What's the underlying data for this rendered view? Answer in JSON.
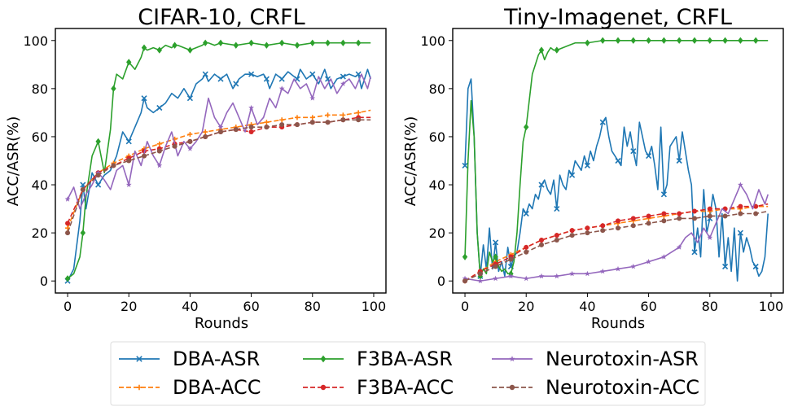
{
  "legend": {
    "placement": "bottom-center",
    "columns": 3,
    "entries": [
      "DBA-ASR",
      "DBA-ACC",
      "F3BA-ASR",
      "F3BA-ACC",
      "Neurotoxin-ASR",
      "Neurotoxin-ACC"
    ]
  },
  "series_style": {
    "DBA-ASR": {
      "color": "#1f77b4",
      "dash": "solid",
      "marker": "x"
    },
    "DBA-ACC": {
      "color": "#ff7f0e",
      "dash": "dashed",
      "marker": "plus"
    },
    "F3BA-ASR": {
      "color": "#2ca02c",
      "dash": "solid",
      "marker": "diamond"
    },
    "F3BA-ACC": {
      "color": "#d62728",
      "dash": "dashed",
      "marker": "circle"
    },
    "Neurotoxin-ASR": {
      "color": "#9467bd",
      "dash": "solid",
      "marker": "star"
    },
    "Neurotoxin-ACC": {
      "color": "#8c564b",
      "dash": "dashed",
      "marker": "circle"
    }
  },
  "chart_data": [
    {
      "type": "line",
      "title": "CIFAR-10, CRFL",
      "xlabel": "Rounds",
      "ylabel": "ACC/ASR(%)",
      "xlim": [
        -4,
        104
      ],
      "ylim": [
        -5,
        105
      ],
      "xticks": [
        0,
        20,
        40,
        60,
        80,
        100
      ],
      "yticks": [
        0,
        20,
        40,
        60,
        80,
        100
      ],
      "grid": false,
      "series": [
        {
          "name": "DBA-ASR",
          "x": [
            0,
            2,
            4,
            5,
            6,
            8,
            10,
            12,
            14,
            16,
            18,
            20,
            22,
            24,
            25,
            26,
            28,
            30,
            32,
            34,
            36,
            38,
            40,
            42,
            44,
            45,
            46,
            48,
            50,
            52,
            54,
            55,
            56,
            58,
            60,
            62,
            64,
            65,
            66,
            68,
            70,
            72,
            74,
            75,
            76,
            78,
            80,
            82,
            84,
            85,
            86,
            88,
            90,
            92,
            94,
            95,
            96,
            98,
            99
          ],
          "y": [
            0,
            5,
            25,
            40,
            30,
            45,
            40,
            44,
            46,
            52,
            62,
            58,
            64,
            70,
            76,
            72,
            70,
            72,
            74,
            78,
            76,
            80,
            76,
            82,
            84,
            86,
            83,
            86,
            84,
            86,
            80,
            82,
            84,
            86,
            86,
            85,
            86,
            84,
            80,
            86,
            84,
            87,
            85,
            84,
            88,
            84,
            86,
            82,
            88,
            84,
            80,
            84,
            85,
            86,
            85,
            86,
            80,
            88,
            84
          ]
        },
        {
          "name": "DBA-ACC",
          "x": [
            0,
            5,
            10,
            15,
            20,
            25,
            30,
            35,
            40,
            45,
            50,
            55,
            60,
            65,
            70,
            75,
            80,
            85,
            90,
            95,
            99
          ],
          "y": [
            22,
            38,
            45,
            49,
            52,
            55,
            57,
            59,
            61,
            62,
            63,
            64,
            65,
            66,
            67,
            68,
            68,
            69,
            69,
            70,
            71
          ]
        },
        {
          "name": "F3BA-ASR",
          "x": [
            0,
            2,
            4,
            5,
            6,
            8,
            10,
            12,
            14,
            15,
            16,
            18,
            20,
            22,
            24,
            25,
            26,
            28,
            30,
            32,
            34,
            35,
            36,
            38,
            40,
            42,
            44,
            45,
            46,
            48,
            50,
            55,
            60,
            65,
            70,
            75,
            80,
            85,
            90,
            95,
            99
          ],
          "y": [
            1,
            3,
            10,
            20,
            35,
            52,
            58,
            45,
            63,
            80,
            86,
            84,
            91,
            88,
            93,
            97,
            96,
            97,
            96,
            98,
            97,
            98,
            98,
            97,
            96,
            97,
            98,
            99,
            99,
            98,
            99,
            98,
            99,
            98,
            99,
            98,
            99,
            99,
            99,
            99,
            99
          ]
        },
        {
          "name": "F3BA-ACC",
          "x": [
            0,
            5,
            10,
            15,
            20,
            25,
            30,
            35,
            40,
            45,
            50,
            55,
            60,
            65,
            70,
            75,
            80,
            85,
            90,
            95,
            99
          ],
          "y": [
            24,
            38,
            45,
            48,
            51,
            54,
            55,
            57,
            58,
            60,
            62,
            63,
            62,
            64,
            64,
            65,
            66,
            66,
            67,
            68,
            68
          ]
        },
        {
          "name": "Neurotoxin-ASR",
          "x": [
            0,
            2,
            4,
            6,
            8,
            10,
            12,
            14,
            16,
            18,
            20,
            22,
            24,
            26,
            28,
            30,
            32,
            34,
            36,
            38,
            40,
            42,
            44,
            46,
            48,
            50,
            52,
            54,
            56,
            58,
            60,
            62,
            64,
            66,
            68,
            70,
            72,
            74,
            76,
            78,
            80,
            82,
            84,
            86,
            88,
            90,
            92,
            94,
            96,
            98,
            99
          ],
          "y": [
            34,
            39,
            30,
            36,
            40,
            45,
            42,
            38,
            46,
            48,
            40,
            54,
            48,
            58,
            52,
            48,
            56,
            62,
            52,
            58,
            55,
            58,
            62,
            76,
            68,
            64,
            70,
            74,
            68,
            62,
            72,
            65,
            68,
            76,
            72,
            80,
            78,
            84,
            80,
            82,
            76,
            85,
            80,
            84,
            78,
            82,
            84,
            80,
            86,
            80,
            85
          ]
        },
        {
          "name": "Neurotoxin-ACC",
          "x": [
            0,
            5,
            10,
            15,
            20,
            25,
            30,
            35,
            40,
            45,
            50,
            55,
            60,
            65,
            70,
            75,
            80,
            85,
            90,
            95,
            99
          ],
          "y": [
            20,
            38,
            44,
            48,
            50,
            52,
            54,
            56,
            58,
            60,
            62,
            63,
            64,
            64,
            65,
            65,
            66,
            66,
            67,
            67,
            67
          ]
        }
      ]
    },
    {
      "type": "line",
      "title": "Tiny-Imagenet, CRFL",
      "xlabel": "Rounds",
      "ylabel": "ACC/ASR(%)",
      "xlim": [
        -4,
        104
      ],
      "ylim": [
        -5,
        105
      ],
      "xticks": [
        0,
        20,
        40,
        60,
        80,
        100
      ],
      "yticks": [
        0,
        20,
        40,
        60,
        80,
        100
      ],
      "grid": false,
      "series": [
        {
          "name": "DBA-ASR",
          "x": [
            0,
            1,
            2,
            3,
            4,
            5,
            6,
            7,
            8,
            9,
            10,
            11,
            12,
            13,
            14,
            15,
            16,
            17,
            18,
            19,
            20,
            21,
            22,
            23,
            24,
            25,
            26,
            27,
            28,
            29,
            30,
            31,
            32,
            33,
            34,
            35,
            36,
            37,
            38,
            39,
            40,
            41,
            42,
            43,
            44,
            45,
            46,
            47,
            48,
            49,
            50,
            51,
            52,
            53,
            54,
            55,
            56,
            57,
            58,
            59,
            60,
            61,
            62,
            63,
            64,
            65,
            66,
            67,
            68,
            69,
            70,
            71,
            72,
            73,
            74,
            75,
            76,
            77,
            78,
            79,
            80,
            81,
            82,
            83,
            84,
            85,
            86,
            87,
            88,
            89,
            90,
            91,
            92,
            93,
            94,
            95,
            96,
            97,
            98,
            99
          ],
          "y": [
            48,
            80,
            84,
            60,
            20,
            2,
            15,
            5,
            22,
            5,
            16,
            4,
            8,
            2,
            14,
            6,
            10,
            12,
            20,
            30,
            28,
            32,
            30,
            36,
            34,
            40,
            42,
            38,
            36,
            42,
            30,
            44,
            40,
            38,
            46,
            44,
            50,
            48,
            46,
            52,
            48,
            54,
            50,
            56,
            60,
            66,
            68,
            60,
            54,
            52,
            50,
            48,
            64,
            56,
            62,
            54,
            48,
            66,
            60,
            54,
            52,
            56,
            48,
            38,
            64,
            36,
            40,
            56,
            58,
            60,
            50,
            62,
            54,
            46,
            40,
            12,
            22,
            10,
            38,
            20,
            26,
            36,
            30,
            10,
            28,
            6,
            18,
            4,
            22,
            0,
            20,
            12,
            18,
            14,
            8,
            6,
            2,
            4,
            10,
            28
          ]
        },
        {
          "name": "DBA-ACC",
          "x": [
            0,
            5,
            10,
            15,
            20,
            25,
            30,
            35,
            40,
            45,
            50,
            55,
            60,
            65,
            70,
            75,
            80,
            85,
            90,
            95,
            99
          ],
          "y": [
            0,
            4,
            8,
            11,
            14,
            17,
            19,
            21,
            22,
            23,
            24,
            25,
            26,
            27,
            28,
            29,
            29,
            30,
            30,
            31,
            31
          ]
        },
        {
          "name": "F3BA-ASR",
          "x": [
            0,
            1,
            2,
            3,
            4,
            5,
            6,
            7,
            8,
            9,
            10,
            11,
            12,
            13,
            14,
            15,
            16,
            17,
            18,
            19,
            20,
            21,
            22,
            23,
            24,
            25,
            26,
            27,
            28,
            29,
            30,
            32,
            34,
            36,
            38,
            40,
            45,
            50,
            55,
            60,
            65,
            70,
            75,
            80,
            85,
            90,
            95,
            99
          ],
          "y": [
            10,
            50,
            75,
            60,
            20,
            2,
            5,
            3,
            12,
            8,
            10,
            6,
            4,
            5,
            3,
            3,
            8,
            20,
            40,
            58,
            64,
            75,
            86,
            90,
            94,
            96,
            92,
            95,
            97,
            96,
            96,
            97,
            98,
            99,
            99,
            99,
            100,
            100,
            100,
            100,
            100,
            100,
            100,
            100,
            100,
            100,
            100,
            100
          ]
        },
        {
          "name": "F3BA-ACC",
          "x": [
            0,
            5,
            10,
            15,
            20,
            25,
            30,
            35,
            40,
            45,
            50,
            55,
            60,
            65,
            70,
            75,
            80,
            85,
            90,
            95,
            99
          ],
          "y": [
            0,
            4,
            7,
            10,
            14,
            17,
            19,
            21,
            22,
            23,
            25,
            26,
            27,
            28,
            28,
            29,
            30,
            30,
            31,
            31,
            32
          ]
        },
        {
          "name": "Neurotoxin-ASR",
          "x": [
            0,
            5,
            10,
            15,
            20,
            25,
            30,
            35,
            40,
            45,
            50,
            55,
            60,
            65,
            70,
            72,
            74,
            76,
            78,
            80,
            82,
            84,
            86,
            88,
            90,
            92,
            94,
            96,
            98,
            99
          ],
          "y": [
            1,
            0,
            1,
            2,
            1,
            2,
            2,
            3,
            3,
            4,
            5,
            6,
            8,
            10,
            14,
            18,
            20,
            16,
            22,
            18,
            24,
            30,
            28,
            34,
            40,
            36,
            30,
            38,
            32,
            36
          ]
        },
        {
          "name": "Neurotoxin-ACC",
          "x": [
            0,
            5,
            10,
            15,
            20,
            25,
            30,
            35,
            40,
            45,
            50,
            55,
            60,
            65,
            70,
            75,
            80,
            85,
            90,
            95,
            99
          ],
          "y": [
            0,
            3,
            6,
            9,
            12,
            15,
            17,
            19,
            20,
            21,
            22,
            23,
            24,
            25,
            26,
            26,
            27,
            27,
            28,
            28,
            29
          ]
        }
      ]
    }
  ]
}
